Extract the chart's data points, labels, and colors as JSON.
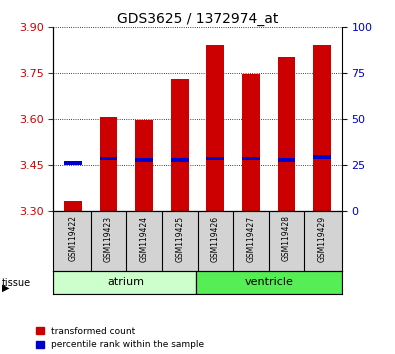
{
  "title": "GDS3625 / 1372974_at",
  "samples": [
    "GSM119422",
    "GSM119423",
    "GSM119424",
    "GSM119425",
    "GSM119426",
    "GSM119427",
    "GSM119428",
    "GSM119429"
  ],
  "red_values": [
    3.33,
    3.605,
    3.595,
    3.73,
    3.84,
    3.745,
    3.8,
    3.84
  ],
  "blue_values": [
    3.455,
    3.47,
    3.465,
    3.465,
    3.47,
    3.47,
    3.465,
    3.475
  ],
  "bar_bottom": 3.3,
  "ylim": [
    3.3,
    3.9
  ],
  "yticks_left": [
    3.3,
    3.45,
    3.6,
    3.75,
    3.9
  ],
  "yticks_right": [
    0,
    25,
    50,
    75,
    100
  ],
  "right_ylim": [
    0,
    100
  ],
  "bar_color_red": "#cc0000",
  "bar_color_blue": "#0000cc",
  "bar_width": 0.5,
  "blue_bar_height": 0.012,
  "grid_color": "#000000",
  "background_color": "#ffffff",
  "label_area_color": "#d3d3d3",
  "left_tick_color": "#cc0000",
  "right_tick_color": "#0000cc",
  "legend_red_label": "transformed count",
  "legend_blue_label": "percentile rank within the sample",
  "atrium_color": "#ccffcc",
  "ventricle_color": "#55ee55"
}
